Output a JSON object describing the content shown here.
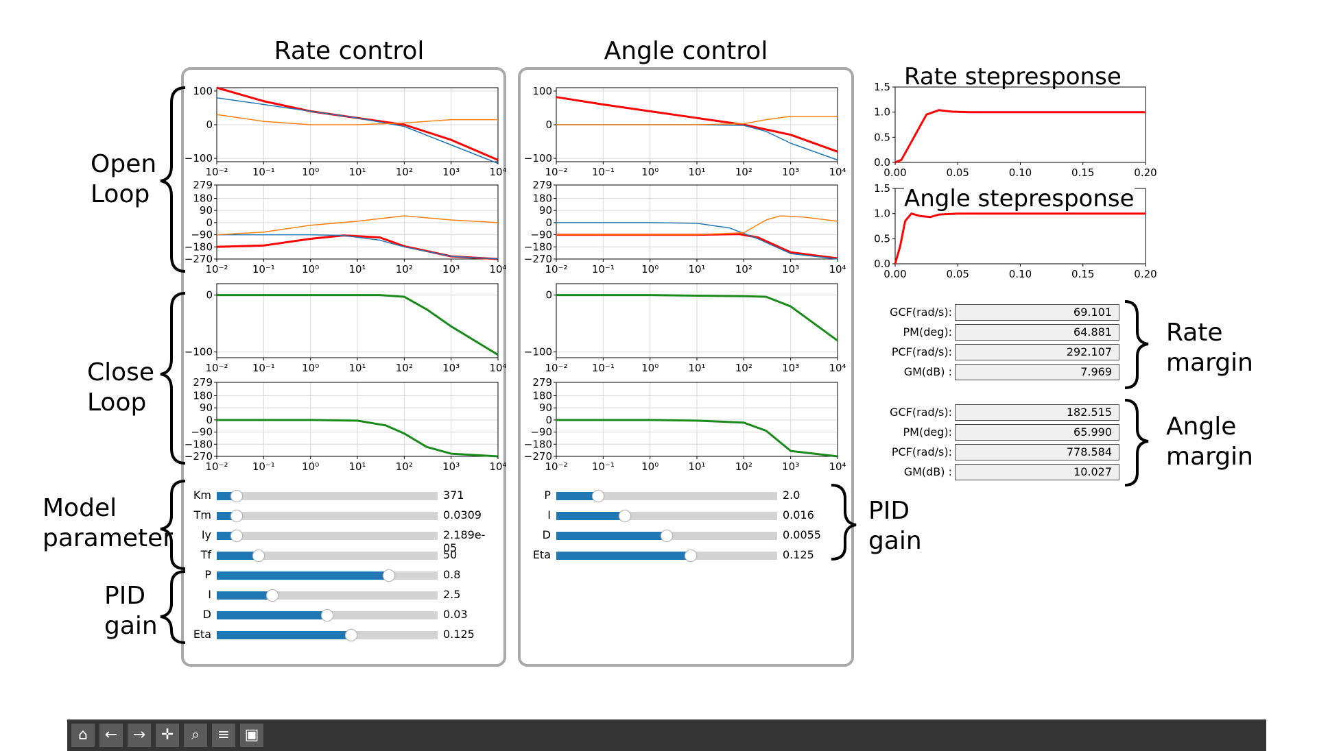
{
  "panels": {
    "rate": {
      "title": "Rate control"
    },
    "angle": {
      "title": "Angle control"
    }
  },
  "side_labels": {
    "open_loop": [
      "Open",
      "Loop"
    ],
    "close_loop": [
      "Close",
      "Loop"
    ],
    "model_parameter": [
      "Model",
      "parameter"
    ],
    "pid_gain_left": [
      "PID",
      "gain"
    ],
    "pid_gain_right": [
      "PID",
      "gain"
    ],
    "rate_margin": [
      "Rate",
      "margin"
    ],
    "angle_margin": [
      "Angle",
      "margin"
    ]
  },
  "axes": {
    "mag_ticks": [
      "100",
      "0",
      "−100"
    ],
    "phase_ticks": [
      "279",
      "180",
      "90",
      "0",
      "−90",
      "−180",
      "−270"
    ],
    "cl_mag_ticks": [
      "0",
      "−100"
    ],
    "freq_ticks": [
      "10⁻²",
      "10⁻¹",
      "10⁰",
      "10¹",
      "10²",
      "10³",
      "10⁴"
    ],
    "step_y_ticks": [
      "1.5",
      "1.0",
      "0.5",
      "0.0"
    ],
    "step_x_ticks": [
      "0.00",
      "0.05",
      "0.10",
      "0.15",
      "0.20"
    ]
  },
  "step_charts": {
    "rate": {
      "title": "Rate stepresponse"
    },
    "angle": {
      "title": "Angle stepresponse"
    }
  },
  "chart_data": [
    {
      "id": "rate-open-mag",
      "type": "line",
      "x_scale": "log",
      "xlim": [
        0.01,
        10000
      ],
      "ylim": [
        -110,
        110
      ],
      "series": [
        {
          "color": "#ff0000",
          "x": [
            0.01,
            0.1,
            1,
            10,
            100,
            1000,
            10000
          ],
          "y": [
            110,
            70,
            40,
            20,
            0,
            -45,
            -105
          ]
        },
        {
          "color": "#1f77b4",
          "x": [
            0.01,
            0.1,
            1,
            10,
            100,
            1000,
            10000
          ],
          "y": [
            80,
            60,
            40,
            20,
            -5,
            -60,
            -115
          ]
        },
        {
          "color": "#ff7f0e",
          "x": [
            0.01,
            0.1,
            1,
            10,
            100,
            1000,
            10000
          ],
          "y": [
            30,
            10,
            0,
            0,
            5,
            15,
            15
          ]
        }
      ]
    },
    {
      "id": "rate-open-phase",
      "type": "line",
      "x_scale": "log",
      "xlim": [
        0.01,
        10000
      ],
      "ylim": [
        -270,
        279
      ],
      "series": [
        {
          "color": "#ff0000",
          "x": [
            0.01,
            0.1,
            1,
            5,
            30,
            100,
            1000,
            10000
          ],
          "y": [
            -180,
            -170,
            -120,
            -95,
            -110,
            -175,
            -250,
            -270
          ]
        },
        {
          "color": "#1f77b4",
          "x": [
            0.01,
            0.1,
            1,
            5,
            30,
            100,
            1000,
            10000
          ],
          "y": [
            -90,
            -90,
            -90,
            -95,
            -130,
            -180,
            -250,
            -270
          ]
        },
        {
          "color": "#ff7f0e",
          "x": [
            0.01,
            0.1,
            1,
            10,
            100,
            1000,
            10000
          ],
          "y": [
            -90,
            -70,
            -20,
            10,
            50,
            20,
            0
          ]
        }
      ]
    },
    {
      "id": "rate-close-mag",
      "type": "line",
      "x_scale": "log",
      "xlim": [
        0.01,
        10000
      ],
      "ylim": [
        -110,
        20
      ],
      "series": [
        {
          "color": "#1a8a1a",
          "x": [
            0.01,
            1,
            30,
            100,
            300,
            1000,
            10000
          ],
          "y": [
            0,
            0,
            0,
            -3,
            -25,
            -55,
            -105
          ]
        }
      ]
    },
    {
      "id": "rate-close-phase",
      "type": "line",
      "x_scale": "log",
      "xlim": [
        0.01,
        10000
      ],
      "ylim": [
        -270,
        279
      ],
      "series": [
        {
          "color": "#1a8a1a",
          "x": [
            0.01,
            1,
            10,
            40,
            100,
            300,
            1000,
            10000
          ],
          "y": [
            0,
            0,
            -5,
            -40,
            -100,
            -200,
            -250,
            -270
          ]
        }
      ]
    },
    {
      "id": "angle-open-mag",
      "type": "line",
      "x_scale": "log",
      "xlim": [
        0.01,
        10000
      ],
      "ylim": [
        -110,
        110
      ],
      "series": [
        {
          "color": "#ff0000",
          "x": [
            0.01,
            0.1,
            1,
            10,
            100,
            1000,
            10000
          ],
          "y": [
            82,
            60,
            40,
            20,
            0,
            -30,
            -80
          ]
        },
        {
          "color": "#1f77b4",
          "x": [
            0.01,
            0.1,
            1,
            10,
            100,
            300,
            1000,
            10000
          ],
          "y": [
            0,
            0,
            0,
            0,
            -2,
            -20,
            -55,
            -105
          ]
        },
        {
          "color": "#ff7f0e",
          "x": [
            0.01,
            1,
            10,
            100,
            300,
            1000,
            10000
          ],
          "y": [
            0,
            0,
            0,
            3,
            15,
            25,
            25
          ]
        }
      ]
    },
    {
      "id": "angle-open-phase",
      "type": "line",
      "x_scale": "log",
      "xlim": [
        0.01,
        10000
      ],
      "ylim": [
        -270,
        279
      ],
      "series": [
        {
          "color": "#ff0000",
          "x": [
            0.01,
            1,
            10,
            80,
            200,
            1000,
            10000
          ],
          "y": [
            -90,
            -90,
            -90,
            -85,
            -110,
            -220,
            -265
          ]
        },
        {
          "color": "#1f77b4",
          "x": [
            0.01,
            1,
            10,
            50,
            200,
            1000,
            10000
          ],
          "y": [
            0,
            0,
            -5,
            -40,
            -120,
            -230,
            -270
          ]
        },
        {
          "color": "#ff7f0e",
          "x": [
            0.01,
            10,
            100,
            300,
            600,
            2000,
            10000
          ],
          "y": [
            -90,
            -90,
            -75,
            20,
            50,
            40,
            10
          ]
        }
      ]
    },
    {
      "id": "angle-close-mag",
      "type": "line",
      "x_scale": "log",
      "xlim": [
        0.01,
        10000
      ],
      "ylim": [
        -110,
        20
      ],
      "series": [
        {
          "color": "#1a8a1a",
          "x": [
            0.01,
            1,
            100,
            300,
            1000,
            10000
          ],
          "y": [
            0,
            0,
            -2,
            -3,
            -20,
            -80
          ]
        }
      ]
    },
    {
      "id": "angle-close-phase",
      "type": "line",
      "x_scale": "log",
      "xlim": [
        0.01,
        10000
      ],
      "ylim": [
        -270,
        279
      ],
      "series": [
        {
          "color": "#1a8a1a",
          "x": [
            0.01,
            1,
            10,
            100,
            300,
            1000,
            10000
          ],
          "y": [
            0,
            0,
            -5,
            -20,
            -80,
            -230,
            -270
          ]
        }
      ]
    },
    {
      "id": "rate-step",
      "type": "line",
      "xlim": [
        0,
        0.2
      ],
      "ylim": [
        0,
        1.5
      ],
      "series": [
        {
          "color": "#ff0000",
          "x": [
            0,
            0.005,
            0.015,
            0.025,
            0.035,
            0.045,
            0.06,
            0.1,
            0.2
          ],
          "y": [
            0,
            0.05,
            0.5,
            0.95,
            1.04,
            1.01,
            1.0,
            1.0,
            1.0
          ]
        }
      ]
    },
    {
      "id": "angle-step",
      "type": "line",
      "xlim": [
        0,
        0.2
      ],
      "ylim": [
        0,
        1.5
      ],
      "series": [
        {
          "color": "#ff0000",
          "x": [
            0,
            0.004,
            0.008,
            0.013,
            0.02,
            0.028,
            0.035,
            0.05,
            0.1,
            0.2
          ],
          "y": [
            0,
            0.35,
            0.85,
            1.0,
            0.95,
            0.93,
            0.98,
            1.0,
            1.0,
            1.0
          ]
        }
      ]
    }
  ],
  "sliders": {
    "rate": [
      {
        "label": "Km",
        "value": "371",
        "fraction": 0.09
      },
      {
        "label": "Tm",
        "value": "0.0309",
        "fraction": 0.09
      },
      {
        "label": "Iy",
        "value": "2.189e-05",
        "fraction": 0.09
      },
      {
        "label": "Tf",
        "value": "50",
        "fraction": 0.19
      },
      {
        "label": "P",
        "value": "0.8",
        "fraction": 0.78
      },
      {
        "label": "I",
        "value": "2.5",
        "fraction": 0.25
      },
      {
        "label": "D",
        "value": "0.03",
        "fraction": 0.5
      },
      {
        "label": "Eta",
        "value": "0.125",
        "fraction": 0.61
      }
    ],
    "angle": [
      {
        "label": "P",
        "value": "2.0",
        "fraction": 0.19
      },
      {
        "label": "I",
        "value": "0.016",
        "fraction": 0.31
      },
      {
        "label": "D",
        "value": "0.0055",
        "fraction": 0.5
      },
      {
        "label": "Eta",
        "value": "0.125",
        "fraction": 0.61
      }
    ]
  },
  "margins": {
    "rate": [
      {
        "label": "GCF(rad/s):",
        "value": "69.101"
      },
      {
        "label": "PM(deg):",
        "value": "64.881"
      },
      {
        "label": "PCF(rad/s):",
        "value": "292.107"
      },
      {
        "label": "GM(dB) :",
        "value": "7.969"
      }
    ],
    "angle": [
      {
        "label": "GCF(rad/s):",
        "value": "182.515"
      },
      {
        "label": "PM(deg):",
        "value": "65.990"
      },
      {
        "label": "PCF(rad/s):",
        "value": "778.584"
      },
      {
        "label": "GM(dB) :",
        "value": "10.027"
      }
    ]
  },
  "toolbar": {
    "buttons": [
      {
        "name": "home-icon",
        "glyph": "⌂"
      },
      {
        "name": "back-arrow-icon",
        "glyph": "←"
      },
      {
        "name": "forward-arrow-icon",
        "glyph": "→"
      },
      {
        "name": "pan-icon",
        "glyph": "✛"
      },
      {
        "name": "zoom-icon",
        "glyph": "⌕"
      },
      {
        "name": "subplots-config-icon",
        "glyph": "≡"
      },
      {
        "name": "save-icon",
        "glyph": "▣"
      }
    ]
  }
}
